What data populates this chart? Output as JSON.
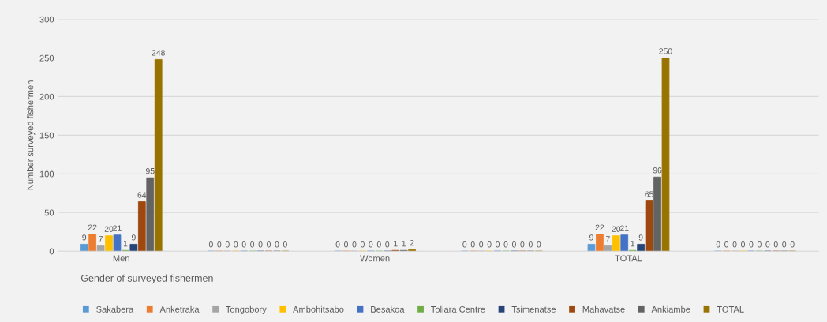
{
  "chart_data": {
    "type": "bar",
    "xlabel": "Gender of surveyed fishermen",
    "ylabel": "Number surveyed fishermen",
    "categories": [
      "Men",
      null,
      "Women",
      null,
      "TOTAL",
      null
    ],
    "series": [
      {
        "name": "Sakabera",
        "color": "#5b9bd5",
        "values": [
          9,
          0,
          0,
          0,
          9,
          0
        ]
      },
      {
        "name": "Anketraka",
        "color": "#ed7d31",
        "values": [
          22,
          0,
          0,
          0,
          22,
          0
        ]
      },
      {
        "name": "Tongobory",
        "color": "#a5a5a5",
        "values": [
          7,
          0,
          0,
          0,
          7,
          0
        ]
      },
      {
        "name": "Ambohitsabo",
        "color": "#ffc000",
        "values": [
          20,
          0,
          0,
          0,
          20,
          0
        ]
      },
      {
        "name": "Besakoa",
        "color": "#4472c4",
        "values": [
          21,
          0,
          0,
          0,
          21,
          0
        ]
      },
      {
        "name": "Toliara Centre",
        "color": "#70ad47",
        "values": [
          1,
          0,
          0,
          0,
          1,
          0
        ]
      },
      {
        "name": "Tsimenatse",
        "color": "#264478",
        "values": [
          9,
          0,
          0,
          0,
          9,
          0
        ]
      },
      {
        "name": "Mahavatse",
        "color": "#9e480e",
        "values": [
          64,
          0,
          1,
          0,
          65,
          0
        ]
      },
      {
        "name": "Ankiambe",
        "color": "#636363",
        "values": [
          95,
          0,
          1,
          0,
          96,
          0
        ]
      },
      {
        "name": "TOTAL",
        "color": "#997300",
        "values": [
          248,
          0,
          2,
          0,
          250,
          0
        ]
      }
    ],
    "ylim": [
      0,
      300
    ],
    "yticks": [
      0,
      50,
      100,
      150,
      200,
      250,
      300
    ],
    "grid": "y",
    "legend": "bottom",
    "data_labels": true
  }
}
